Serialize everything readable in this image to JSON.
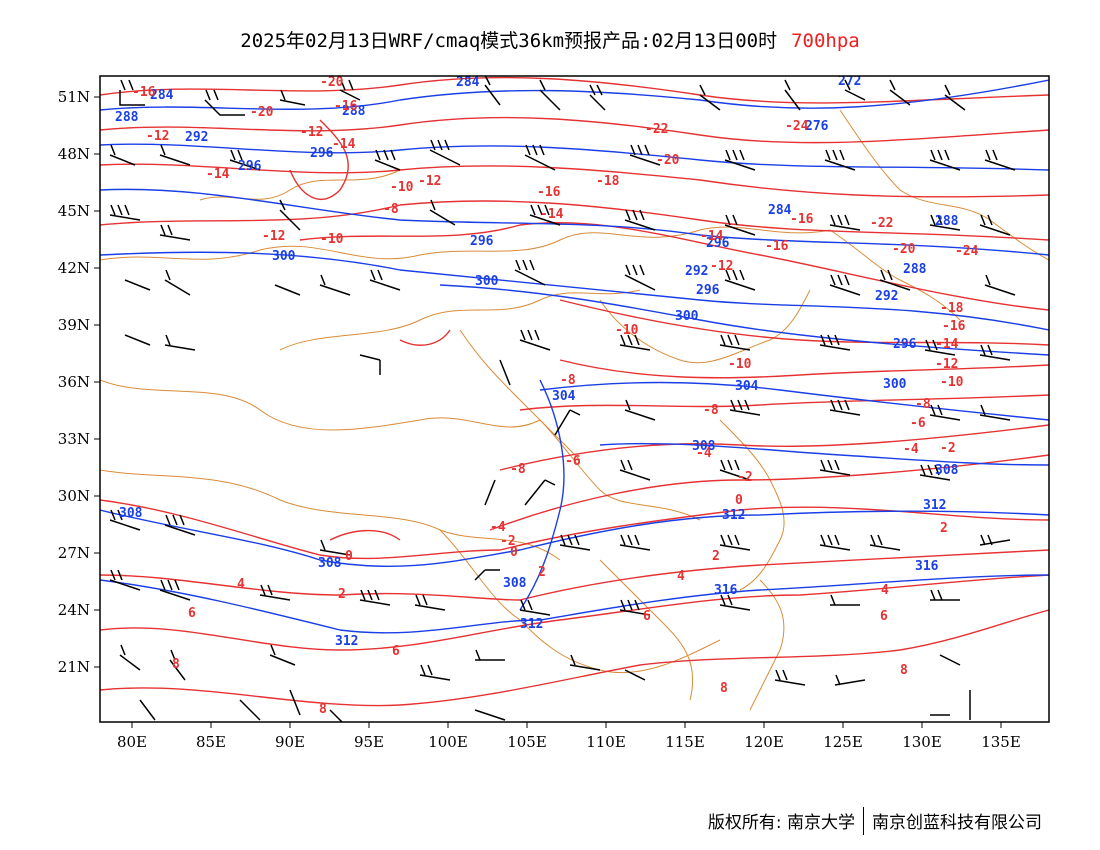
{
  "title": {
    "main": "2025年02月13日WRF/cmaq模式36km预报产品:02月13日00时",
    "level": "700hpa",
    "level_color": "#ee2020"
  },
  "map": {
    "lon_range": [
      78,
      138
    ],
    "lat_range": [
      18,
      52
    ],
    "lon_ticks": [
      "80E",
      "85E",
      "90E",
      "95E",
      "100E",
      "105E",
      "110E",
      "115E",
      "120E",
      "125E",
      "130E",
      "135E"
    ],
    "lat_ticks": [
      "51N",
      "48N",
      "45N",
      "42N",
      "39N",
      "36N",
      "33N",
      "30N",
      "27N",
      "24N",
      "21N"
    ],
    "colors": {
      "height_contour": "#1a3fe6",
      "temperature_contour": "#e63232",
      "boundary": "#d98c3a",
      "wind_barb": "#000000"
    },
    "height_labels": [
      "284",
      "288",
      "292",
      "296",
      "300",
      "304",
      "308",
      "312",
      "316",
      "276",
      "272"
    ],
    "temperature_labels": [
      "-24",
      "-22",
      "-20",
      "-18",
      "-16",
      "-14",
      "-12",
      "-10",
      "-8",
      "-6",
      "-4",
      "-2",
      "0",
      "2",
      "4",
      "6",
      "8"
    ]
  },
  "footer": {
    "copyright": "版权所有: 南京大学",
    "company": "南京创蓝科技有限公司"
  }
}
